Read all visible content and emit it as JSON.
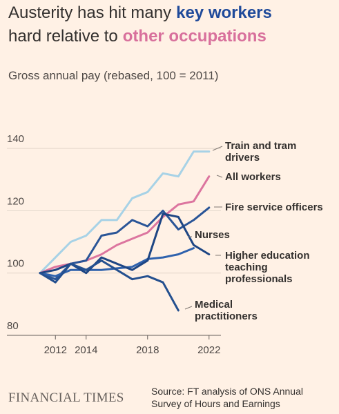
{
  "chart_data": {
    "type": "line",
    "title_lead": "Austerity has hit many",
    "title_key": "key workers",
    "title_mid": "hard relative to",
    "title_other": "other occupations",
    "subtitle": "Gross annual pay (rebased, 100 = 2011)",
    "source": "Source: FT analysis of ONS Annual Survey of Hours and Earnings",
    "publisher": "FINANCIAL TIMES",
    "x": [
      2011,
      2012,
      2013,
      2014,
      2015,
      2016,
      2017,
      2018,
      2019,
      2020,
      2021,
      2022
    ],
    "xlim": [
      2011,
      2022.1
    ],
    "xticks": [
      2012,
      2014,
      2018,
      2022
    ],
    "ylim": [
      80,
      146
    ],
    "yticks": [
      80,
      100,
      120,
      140
    ],
    "grid": true,
    "series": [
      {
        "name": "Train and tram drivers",
        "color": "#a7d2e6",
        "values": [
          100,
          105,
          110,
          112,
          117,
          117,
          124,
          126,
          132,
          131,
          139,
          139
        ]
      },
      {
        "name": "All workers",
        "color": "#dc759f",
        "values": [
          100,
          102,
          103,
          104,
          106,
          109,
          111,
          113,
          118,
          122,
          123,
          131
        ]
      },
      {
        "name": "Fire service officers",
        "color": "#2a5597",
        "values": [
          100,
          98,
          103,
          104,
          112,
          113,
          117,
          115,
          120,
          114,
          117,
          121
        ]
      },
      {
        "name": "Nurses",
        "color": "#2f62ad",
        "values": [
          100,
          99,
          101,
          101,
          101,
          101.5,
          102,
          104.5,
          105,
          106,
          108,
          null
        ]
      },
      {
        "name": "Higher education teaching professionals",
        "color": "#1e4684",
        "values": [
          100,
          101,
          103,
          100,
          105,
          103,
          101,
          104,
          119,
          118,
          109,
          106
        ]
      },
      {
        "name": "Medical practitioners",
        "color": "#24508f",
        "values": [
          100,
          97,
          103,
          101,
          104,
          101,
          98,
          99,
          97,
          88,
          null,
          null
        ]
      }
    ]
  }
}
